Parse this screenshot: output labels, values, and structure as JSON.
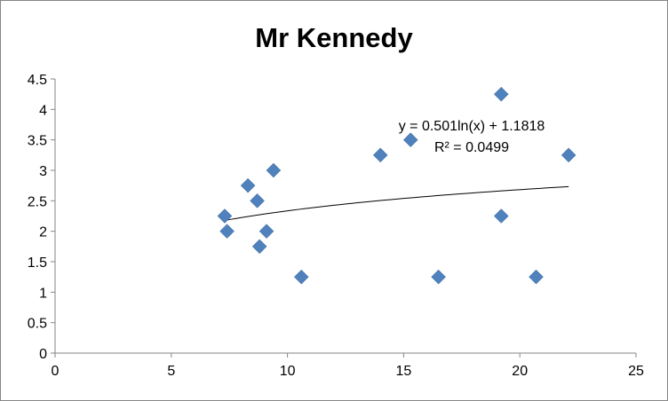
{
  "chart_data": {
    "type": "scatter",
    "title": "Mr Kennedy",
    "xlabel": "",
    "ylabel": "",
    "xlim": [
      0,
      25
    ],
    "ylim": [
      0,
      4.5
    ],
    "x_ticks": [
      0,
      5,
      10,
      15,
      20,
      25
    ],
    "y_ticks": [
      0,
      0.5,
      1,
      1.5,
      2,
      2.5,
      3,
      3.5,
      4,
      4.5
    ],
    "x_tick_labels": [
      "0",
      "5",
      "10",
      "15",
      "20",
      "25"
    ],
    "y_tick_labels": [
      "0",
      "0.5",
      "1",
      "1.5",
      "2",
      "2.5",
      "3",
      "3.5",
      "4",
      "4.5"
    ],
    "grid": false,
    "legend": "none",
    "marker_color": "#4F81BD",
    "marker_shape": "diamond",
    "series": [
      {
        "x": [
          7.3,
          7.4,
          8.3,
          8.7,
          8.8,
          9.1,
          9.4,
          10.6,
          14.0,
          15.3,
          16.5,
          19.2,
          19.2,
          20.7,
          22.1
        ],
        "y": [
          2.25,
          2.0,
          2.75,
          2.5,
          1.75,
          2.0,
          3.0,
          1.25,
          3.25,
          3.5,
          1.25,
          4.25,
          2.25,
          1.25,
          3.25
        ]
      }
    ],
    "trendline": {
      "type": "logarithmic",
      "a": 0.501,
      "b": 1.1818,
      "x_range": [
        7.3,
        22.1
      ],
      "equation": "y = 0.501ln(x) + 1.1818",
      "r_squared": "R² = 0.0499"
    }
  }
}
